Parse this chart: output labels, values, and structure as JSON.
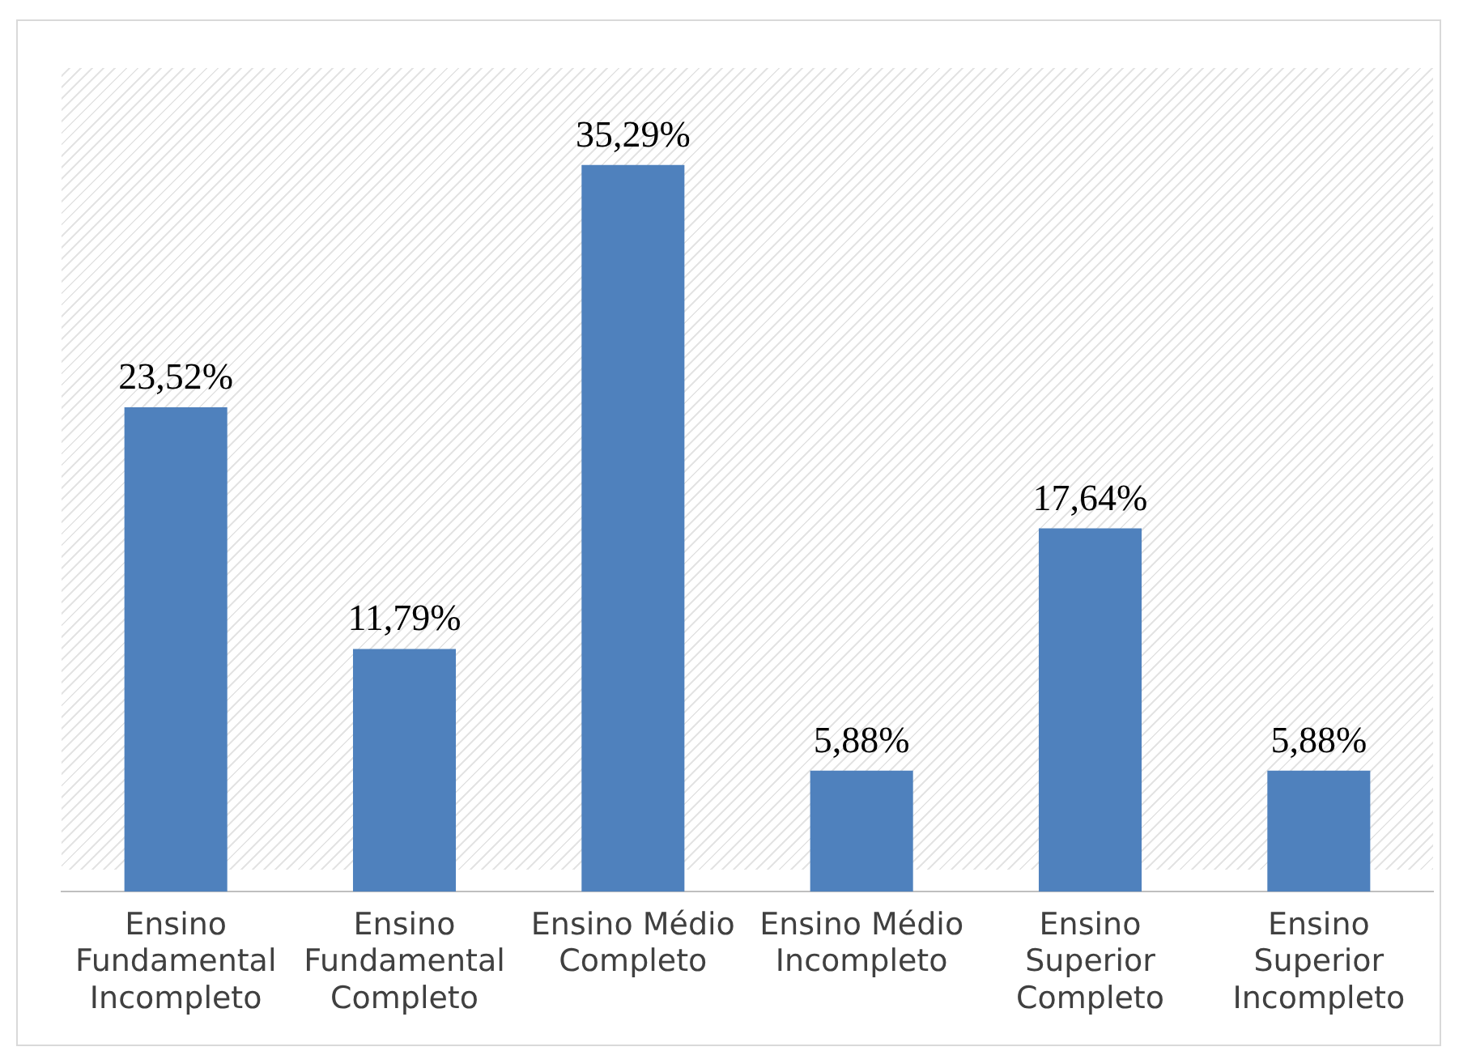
{
  "chart_data": {
    "type": "bar",
    "categories": [
      "Ensino Fundamental Incompleto",
      "Ensino Fundamental Completo",
      "Ensino Médio Completo",
      "Ensino Médio Incompleto",
      "Ensino Superior Completo",
      "Ensino Superior Incompleto"
    ],
    "values": [
      23.52,
      11.79,
      35.29,
      5.88,
      17.64,
      5.88
    ],
    "value_labels": [
      "23,52%",
      "11,79%",
      "35,29%",
      "5,88%",
      "17,64%",
      "5,88%"
    ],
    "color": "#4f81bd",
    "grid": false,
    "legend": false
  }
}
